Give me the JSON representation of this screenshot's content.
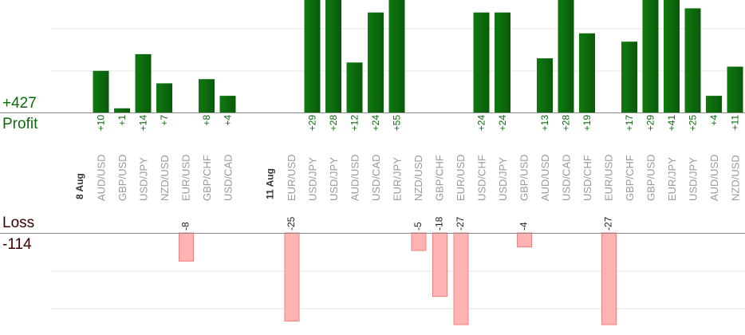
{
  "summary": {
    "profit_total": "+427",
    "profit_label": "Profit",
    "loss_label": "Loss",
    "loss_total": "-114"
  },
  "colors": {
    "profit": "#0b6a0b",
    "profit_text": "#0b6a0b",
    "loss_fill": "#ffb3b3",
    "loss_stroke": "#f08080",
    "loss_text": "#3a0000",
    "grid": "#e6e6e6",
    "axis": "#888888",
    "pair_text": "#999999",
    "date_text": "#333333"
  },
  "chart_data": {
    "type": "bar",
    "title": "",
    "xlabel": "",
    "ylabel": "",
    "grid": true,
    "slots": [
      {
        "kind": "date",
        "label": "8 Aug"
      },
      {
        "kind": "pair",
        "label": "AUD/USD",
        "profit": 10
      },
      {
        "kind": "pair",
        "label": "GBP/USD",
        "profit": 1
      },
      {
        "kind": "pair",
        "label": "USD/JPY",
        "profit": 14
      },
      {
        "kind": "pair",
        "label": "NZD/USD",
        "profit": 7
      },
      {
        "kind": "pair",
        "label": "EUR/USD",
        "loss": -8
      },
      {
        "kind": "pair",
        "label": "GBP/CHF",
        "profit": 8
      },
      {
        "kind": "pair",
        "label": "USD/CAD",
        "profit": 4
      },
      {
        "kind": "gap"
      },
      {
        "kind": "date",
        "label": "11 Aug"
      },
      {
        "kind": "pair",
        "label": "EUR/USD",
        "loss": -25
      },
      {
        "kind": "pair",
        "label": "USD/JPY",
        "profit": 29
      },
      {
        "kind": "pair",
        "label": "USD/JPY",
        "profit": 28
      },
      {
        "kind": "pair",
        "label": "AUD/USD",
        "profit": 12
      },
      {
        "kind": "pair",
        "label": "USD/CAD",
        "profit": 24
      },
      {
        "kind": "pair",
        "label": "EUR/JPY",
        "profit": 55
      },
      {
        "kind": "pair",
        "label": "NZD/USD",
        "loss": -5
      },
      {
        "kind": "pair",
        "label": "GBP/CHF",
        "loss": -18
      },
      {
        "kind": "pair",
        "label": "EUR/USD",
        "loss": -27
      },
      {
        "kind": "pair",
        "label": "USD/CHF",
        "profit": 24
      },
      {
        "kind": "pair",
        "label": "USD/JPY",
        "profit": 24
      },
      {
        "kind": "pair",
        "label": "GBP/USD",
        "loss": -4
      },
      {
        "kind": "pair",
        "label": "AUD/USD",
        "profit": 13
      },
      {
        "kind": "pair",
        "label": "USD/CAD",
        "profit": 28
      },
      {
        "kind": "pair",
        "label": "USD/CHF",
        "profit": 19
      },
      {
        "kind": "pair",
        "label": "EUR/USD",
        "loss": -27
      },
      {
        "kind": "pair",
        "label": "GBP/CHF",
        "profit": 17
      },
      {
        "kind": "pair",
        "label": "GBP/USD",
        "profit": 29
      },
      {
        "kind": "pair",
        "label": "EUR/JPY",
        "profit": 41
      },
      {
        "kind": "pair",
        "label": "USD/JPY",
        "profit": 25
      },
      {
        "kind": "pair",
        "label": "AUD/USD",
        "profit": 4
      },
      {
        "kind": "pair",
        "label": "NZD/USD",
        "profit": 11
      }
    ],
    "profit_ylim": [
      0,
      27
    ],
    "loss_ylim": [
      -26,
      0
    ]
  }
}
